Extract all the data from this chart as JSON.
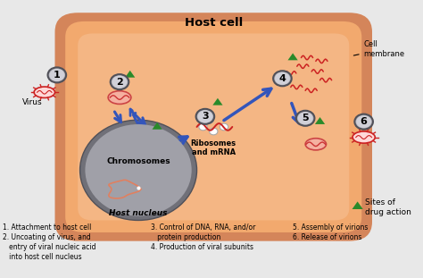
{
  "title": "Host cell",
  "bg_color": "#e8e8e8",
  "cell_fill": "#f2a96e",
  "cell_edge": "#d4855a",
  "cell_inner_fill": "#f7c49a",
  "nucleus_fill": "#a0a0a8",
  "nucleus_edge": "#707078",
  "nucleus_inner": "#b8b8c0",
  "arrow_color": "#3355bb",
  "virus_color": "#cc2222",
  "virus_fill": "#f0f0f0",
  "step_bg": "#b0b0b8",
  "step_edge": "#808088",
  "green_triangle": "#2a8a2a",
  "cell_membrane_label": "Cell\nmembrane",
  "host_nucleus_label": "Host nucleus",
  "legend_text": "Sites of\ndrug action",
  "cap1a": "1. Attachment to host cell",
  "cap1b": "3. Control of DNA, RNA, and/or",
  "cap1c": "5. Assembly of virions",
  "cap2a": "2. Uncoating of virus, and",
  "cap2b": "   protein production",
  "cap2c": "6. Release of virions",
  "cap3a": "   entry of viral nucleic acid",
  "cap3b": "4. Production of viral subunits",
  "cap4a": "   into host cell nucleus"
}
